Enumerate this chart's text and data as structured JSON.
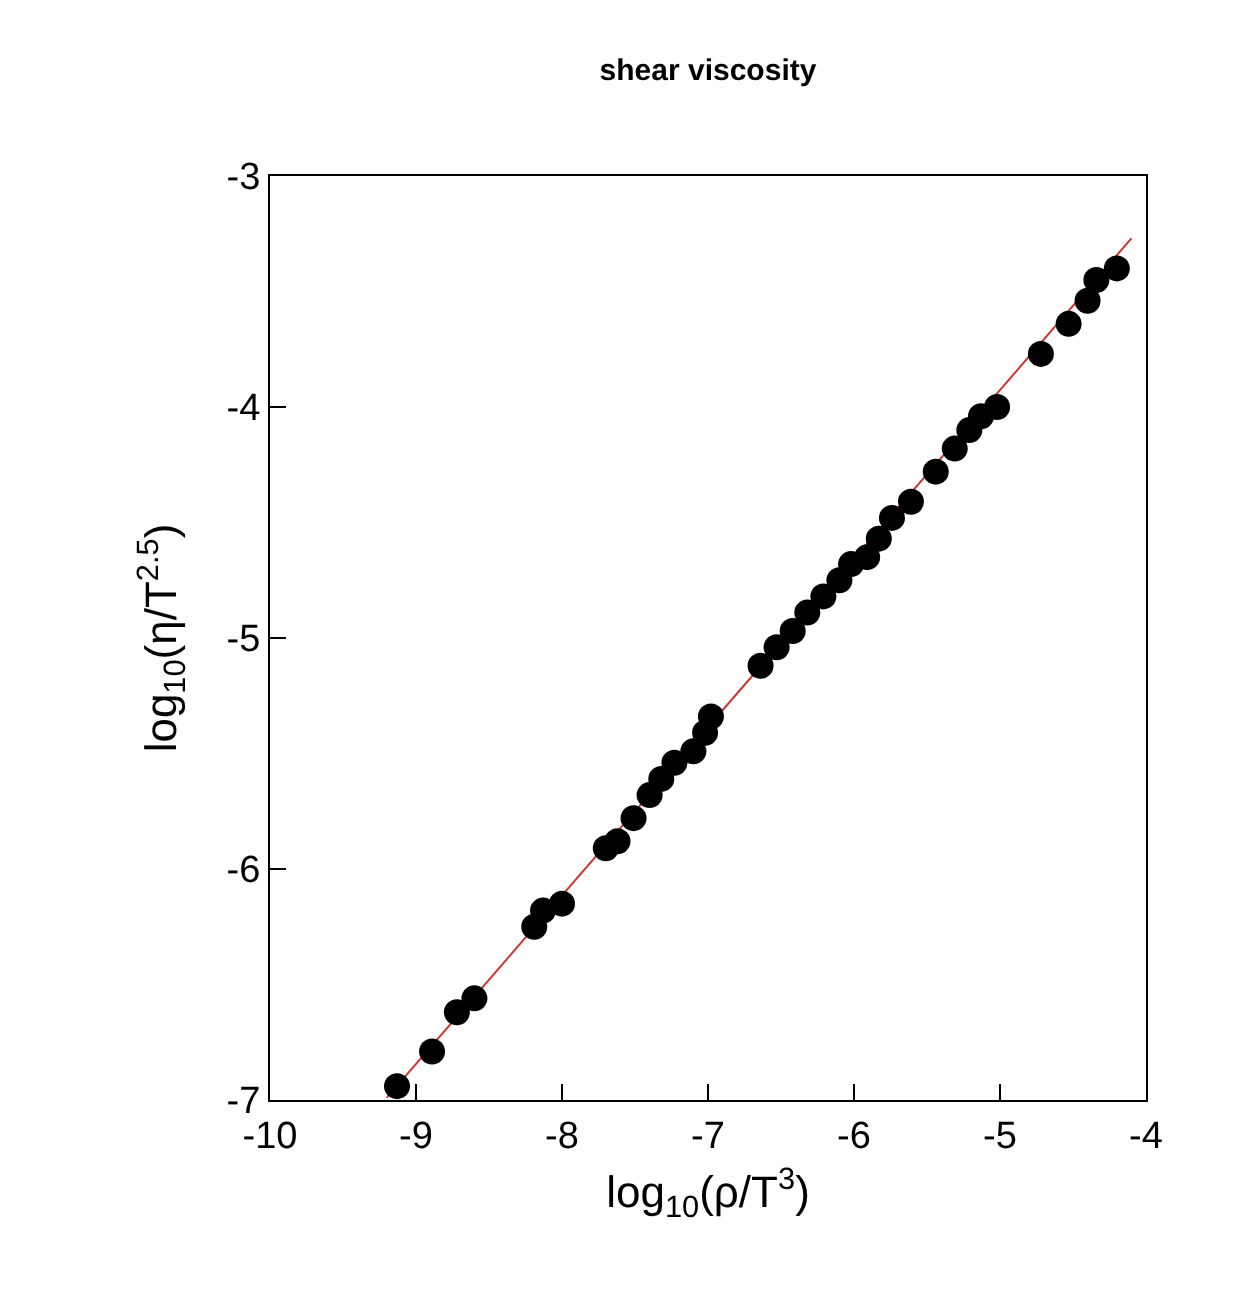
{
  "chart_data": {
    "type": "scatter",
    "title": "shear viscosity",
    "xlabel": "log$_{10}$(ρ/T$^{3}$)",
    "ylabel": "log$_{10}$(η/T$^{2.5}$)",
    "xlim": [
      -10,
      -4
    ],
    "xticks": [
      -10,
      -9,
      -8,
      -7,
      -6,
      -5,
      -4
    ],
    "ylim": [
      -7,
      -3
    ],
    "yticks": [
      -7,
      -6,
      -5,
      -4,
      -3
    ],
    "grid": false,
    "marker": "circle",
    "series": [
      {
        "type": "line",
        "color": "#cc3333",
        "line_style": "solid",
        "marker": "none",
        "x": [
          -9.2,
          -4.1
        ],
        "values": [
          -6.99,
          -3.27
        ]
      },
      {
        "color": "#000000",
        "x": [
          -9.13,
          -8.89,
          -8.72,
          -8.6,
          -8.19,
          -8.13,
          -8.0,
          -7.7,
          -7.62,
          -7.51,
          -7.4,
          -7.32,
          -7.23,
          -7.1,
          -7.02,
          -6.98,
          -6.64,
          -6.53,
          -6.42,
          -6.32,
          -6.21,
          -6.1,
          -6.02,
          -5.91,
          -5.83,
          -5.74,
          -5.61,
          -5.44,
          -5.31,
          -5.21,
          -5.13,
          -5.02,
          -4.72,
          -4.53,
          -4.4,
          -4.34,
          -4.2
        ],
        "values": [
          -6.94,
          -6.79,
          -6.62,
          -6.56,
          -6.25,
          -6.18,
          -6.15,
          -5.91,
          -5.88,
          -5.78,
          -5.68,
          -5.61,
          -5.54,
          -5.49,
          -5.41,
          -5.34,
          -5.12,
          -5.04,
          -4.97,
          -4.89,
          -4.82,
          -4.75,
          -4.68,
          -4.65,
          -4.57,
          -4.48,
          -4.41,
          -4.28,
          -4.18,
          -4.1,
          -4.04,
          -4.0,
          -3.77,
          -3.64,
          -3.54,
          -3.45,
          -3.4
        ]
      }
    ]
  }
}
